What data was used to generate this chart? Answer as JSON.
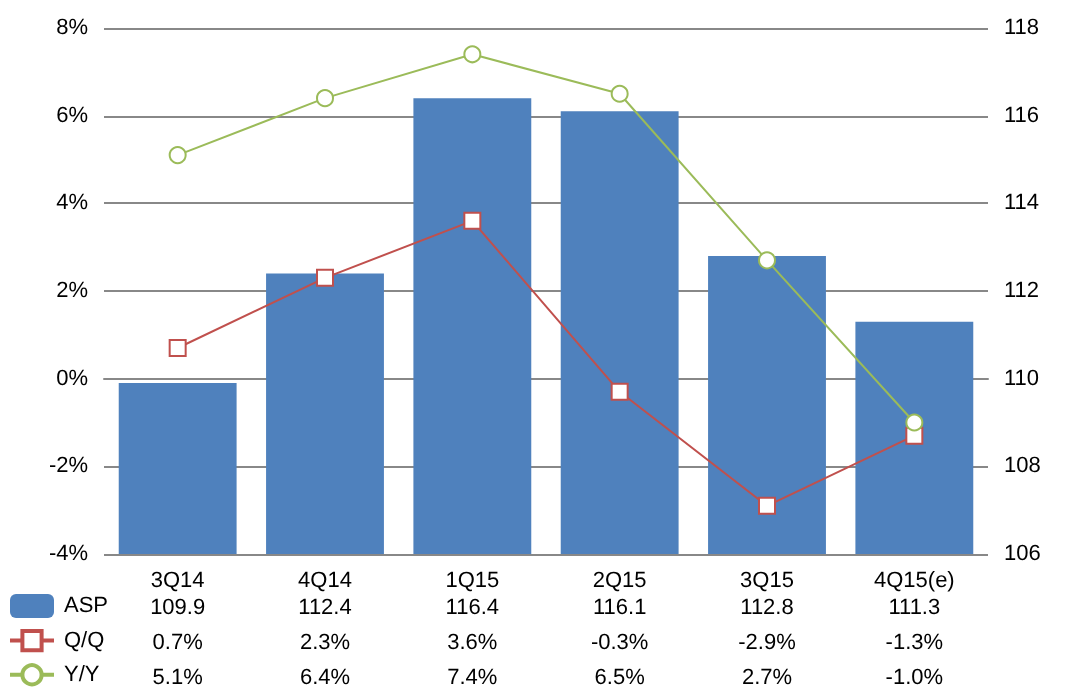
{
  "chart_data": {
    "type": "bar",
    "categories": [
      "3Q14",
      "4Q14",
      "1Q15",
      "2Q15",
      "3Q15",
      "4Q15(e)"
    ],
    "series": [
      {
        "name": "ASP",
        "axis": "y2",
        "color": "#4f81bd",
        "values": [
          109.9,
          112.4,
          116.4,
          116.1,
          112.8,
          111.3
        ],
        "value_labels": [
          "109.9",
          "112.4",
          "116.4",
          "116.1",
          "112.8",
          "111.3"
        ]
      },
      {
        "name": "Q/Q",
        "type": "line",
        "color": "#c0504d",
        "marker": "square",
        "values": [
          0.7,
          2.3,
          3.6,
          -0.3,
          -2.9,
          -1.3
        ],
        "value_labels": [
          "0.7%",
          "2.3%",
          "3.6%",
          "-0.3%",
          "-2.9%",
          "-1.3%"
        ]
      },
      {
        "name": "Y/Y",
        "type": "line",
        "color": "#9bbb59",
        "marker": "circle",
        "values": [
          5.1,
          6.4,
          7.4,
          6.5,
          2.7,
          -1.0
        ],
        "value_labels": [
          "5.1%",
          "6.4%",
          "7.4%",
          "6.5%",
          "2.7%",
          "-1.0%"
        ]
      }
    ],
    "ylim": [
      -4,
      8
    ],
    "yticks": [
      {
        "value": -4,
        "label": "-4%"
      },
      {
        "value": -2,
        "label": "-2%"
      },
      {
        "value": 0,
        "label": "0%"
      },
      {
        "value": 2,
        "label": "2%"
      },
      {
        "value": 4,
        "label": "4%"
      },
      {
        "value": 6,
        "label": "6%"
      },
      {
        "value": 8,
        "label": "8%"
      }
    ],
    "y2lim": [
      106,
      118
    ],
    "y2ticks": [
      106,
      108,
      110,
      112,
      114,
      116,
      118
    ],
    "grid": "y",
    "legend": "bottom"
  }
}
